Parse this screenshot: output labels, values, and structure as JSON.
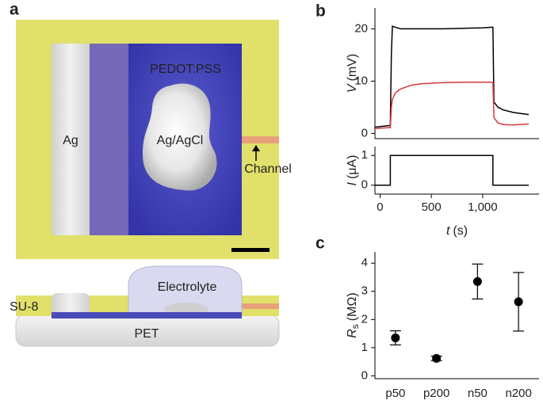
{
  "panel_labels": [
    "a",
    "b",
    "c"
  ],
  "diagram": {
    "labels": {
      "ag": "Ag",
      "pedot": "PEDOT:PSS",
      "agcl": "Ag/AgCl",
      "channel": "Channel",
      "electrolyte": "Electrolyte",
      "su8": "SU-8",
      "pet": "PET"
    }
  },
  "chart_data": [
    {
      "type": "line",
      "ylabel": {
        "symbol": "V",
        "unit": "(mV)"
      },
      "x": [
        -50,
        0,
        90,
        100,
        110,
        120,
        150,
        200,
        300,
        400,
        600,
        800,
        1000,
        1090,
        1100,
        1110,
        1150,
        1200,
        1300,
        1450
      ],
      "series": [
        {
          "color": "#000000",
          "values": [
            1.2,
            1.3,
            1.5,
            1.6,
            15,
            20.5,
            20.3,
            20,
            20,
            20,
            20,
            20.1,
            20.2,
            20.3,
            20.3,
            6,
            5,
            4.5,
            4,
            3.6
          ]
        },
        {
          "color": "#d9383a",
          "values": [
            0.9,
            1,
            1.1,
            1.1,
            5,
            6.5,
            7.8,
            8.5,
            9.2,
            9.5,
            9.7,
            9.8,
            9.8,
            9.8,
            9.8,
            3,
            2,
            1.7,
            1.6,
            1.8
          ]
        }
      ],
      "xlim": [
        -50,
        1550
      ],
      "ylim": [
        -1,
        24
      ],
      "yticks": [
        0,
        10,
        20
      ]
    },
    {
      "type": "line",
      "ylabel": {
        "symbol": "I",
        "unit": "(μA)"
      },
      "xlabel": {
        "symbol": "t",
        "unit": "(s)"
      },
      "x": [
        -50,
        100,
        100,
        1100,
        1100,
        1450
      ],
      "series": [
        {
          "color": "#000000",
          "values": [
            0,
            0,
            1,
            1,
            0,
            0
          ]
        }
      ],
      "xlim": [
        -50,
        1550
      ],
      "xticks": [
        0,
        500,
        {
          "value": 1000,
          "label": "1,000"
        }
      ],
      "ylim": [
        -0.3,
        1.3
      ],
      "yticks": [
        0,
        1
      ]
    },
    {
      "type": "scatter",
      "ylabel": {
        "symbol": "R",
        "subscript": "s",
        "unit": "(MΩ)"
      },
      "categories": [
        "p50",
        "p200",
        "n50",
        "n200"
      ],
      "values": [
        1.35,
        0.62,
        3.35,
        2.63
      ],
      "errors": [
        0.25,
        0.08,
        0.62,
        1.04
      ],
      "color": "#000000",
      "ylim": [
        -0.1,
        4.4
      ],
      "yticks": [
        0,
        1,
        2,
        3,
        4
      ]
    }
  ]
}
